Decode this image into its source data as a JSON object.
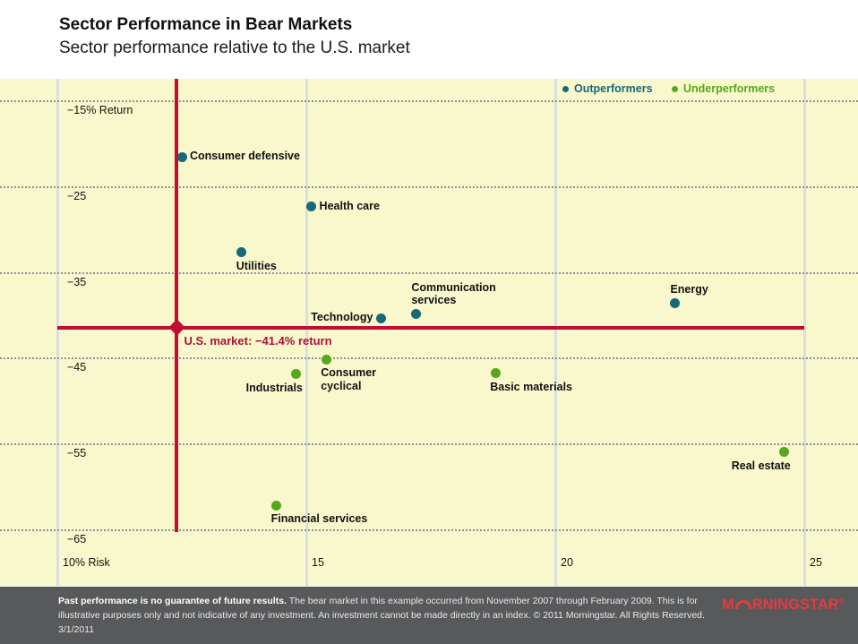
{
  "header": {
    "title": "Sector Performance in Bear Markets",
    "subtitle": "Sector performance relative to the U.S. market"
  },
  "legend": {
    "outperformers": "Outperformers",
    "underperformers": "Underperformers"
  },
  "colors": {
    "outperformer": "#17697A",
    "underperformer": "#58A71D",
    "market_line": "#C00D31",
    "market_text": "#AB1239",
    "plot_background": "#F8F8CC",
    "footer_background": "#58595B",
    "logo_red": "#E33B40"
  },
  "chart_data": {
    "type": "scatter",
    "title": "Sector Performance in Bear Markets",
    "subtitle": "Sector performance relative to the U.S. market",
    "xlabel": "Risk (%)",
    "ylabel": "Return (%)",
    "xlim": [
      10,
      26
    ],
    "ylim": [
      -71.5,
      -12.5
    ],
    "grid": "horizontal dotted, vertical solid",
    "legend_position": "top-right inside plot",
    "x_axis": {
      "tick_values": [
        10,
        15,
        20,
        25
      ],
      "tick_labels": [
        "10% Risk",
        "15",
        "20",
        "25"
      ]
    },
    "y_axis": {
      "tick_values": [
        -15,
        -25,
        -35,
        -45,
        -55,
        -65
      ],
      "tick_labels": [
        "−15% Return",
        "−25",
        "−35",
        "−45",
        "−55",
        "−65"
      ]
    },
    "us_market": {
      "label": "U.S. market: −41.4% return",
      "return": -41.4,
      "risk": 12.4
    },
    "series": [
      {
        "name": "Outperformers",
        "color": "#17697A",
        "points": [
          {
            "label": "Consumer defensive",
            "risk": 12.5,
            "return": -21.5,
            "placement": "right"
          },
          {
            "label": "Health care",
            "risk": 15.1,
            "return": -27.3,
            "placement": "right"
          },
          {
            "label": "Utilities",
            "risk": 13.7,
            "return": -32.6,
            "placement": "below"
          },
          {
            "label": "Technology",
            "risk": 16.5,
            "return": -40.3,
            "placement": "left"
          },
          {
            "label": "Communication\nservices",
            "risk": 17.2,
            "return": -39.8,
            "placement": "above"
          },
          {
            "label": "Energy",
            "risk": 22.4,
            "return": -38.5,
            "placement": "above"
          }
        ]
      },
      {
        "name": "Underperformers",
        "color": "#58A71D",
        "points": [
          {
            "label": "Consumer\ncyclical",
            "risk": 15.4,
            "return": -45.1,
            "placement": "below"
          },
          {
            "label": "Industrials",
            "risk": 14.8,
            "return": -46.8,
            "placement": "below-end"
          },
          {
            "label": "Basic materials",
            "risk": 18.8,
            "return": -46.7,
            "placement": "below"
          },
          {
            "label": "Real estate",
            "risk": 24.6,
            "return": -55.9,
            "placement": "below-end"
          },
          {
            "label": "Financial services",
            "risk": 14.4,
            "return": -62.1,
            "placement": "below"
          }
        ]
      }
    ]
  },
  "footer": {
    "bold": "Past performance is no guarantee of future results.",
    "text": "The bear market in this example occurred from November 2007 through February 2009. This is for illustrative purposes only and not indicative of any investment. An investment cannot be made directly in an index. © 2011 Morningstar. All Rights Reserved. 3/1/2011",
    "logo": {
      "prefix": "M",
      "suffix": "RNINGSTAR",
      "reg": "®"
    }
  }
}
